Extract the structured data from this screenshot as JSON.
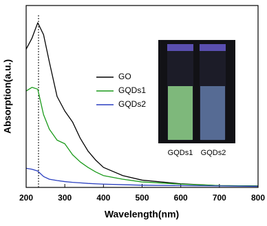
{
  "chart_data": {
    "type": "line",
    "x_label": "Wavelength(nm)",
    "y_label": "Absorption(a.u.)",
    "x": [
      200,
      215,
      230,
      245,
      260,
      280,
      300,
      320,
      340,
      360,
      380,
      400,
      450,
      500,
      600,
      700,
      800
    ],
    "series": [
      {
        "name": "GO",
        "color": "#000000",
        "values": [
          0.76,
          0.82,
          0.905,
          0.84,
          0.69,
          0.5,
          0.42,
          0.36,
          0.27,
          0.2,
          0.15,
          0.11,
          0.065,
          0.04,
          0.02,
          0.01,
          0.008
        ]
      },
      {
        "name": "GQDs1",
        "color": "#1a9a1a",
        "values": [
          0.53,
          0.55,
          0.54,
          0.4,
          0.32,
          0.26,
          0.24,
          0.18,
          0.14,
          0.11,
          0.085,
          0.065,
          0.045,
          0.03,
          0.018,
          0.01,
          0.008
        ]
      },
      {
        "name": "GQDs2",
        "color": "#2a3fc0",
        "values": [
          0.105,
          0.1,
          0.09,
          0.06,
          0.045,
          0.038,
          0.032,
          0.028,
          0.025,
          0.022,
          0.02,
          0.018,
          0.015,
          0.012,
          0.01,
          0.008,
          0.006
        ]
      }
    ],
    "xlim": [
      200,
      800
    ],
    "xticks": [
      200,
      300,
      400,
      500,
      600,
      700,
      800
    ],
    "ylim": [
      0,
      1
    ],
    "reference_line_x": 232,
    "inset_labels": [
      "GQDs1",
      "GQDs2"
    ]
  }
}
